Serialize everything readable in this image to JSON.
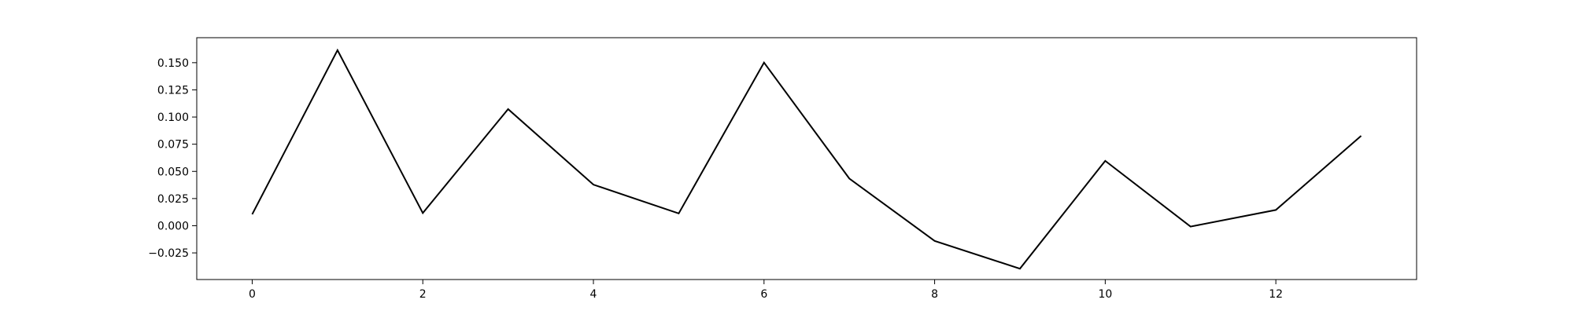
{
  "chart_data": {
    "type": "line",
    "title": "",
    "xlabel": "",
    "ylabel": "",
    "x": [
      0,
      1,
      2,
      3,
      4,
      5,
      6,
      7,
      8,
      9,
      10,
      11,
      12,
      13
    ],
    "series": [
      {
        "color": "#000000",
        "values": [
          0.0105,
          0.1615,
          0.0117,
          0.1073,
          0.0378,
          0.0113,
          0.1501,
          0.0434,
          -0.014,
          -0.0395,
          0.0597,
          -0.0008,
          0.0145,
          0.0827
        ]
      }
    ],
    "xlim": [
      -0.65,
      13.65
    ],
    "ylim": [
      -0.0495,
      0.173
    ],
    "xticks": [
      0,
      2,
      4,
      6,
      8,
      10,
      12
    ],
    "xtick_labels": [
      "0",
      "2",
      "4",
      "6",
      "8",
      "10",
      "12"
    ],
    "yticks": [
      -0.025,
      0.0,
      0.025,
      0.05,
      0.075,
      0.1,
      0.125,
      0.15
    ],
    "ytick_labels": [
      "−0.025",
      "0.000",
      "0.025",
      "0.050",
      "0.075",
      "0.100",
      "0.125",
      "0.150"
    ],
    "grid": false,
    "legend": "none"
  }
}
